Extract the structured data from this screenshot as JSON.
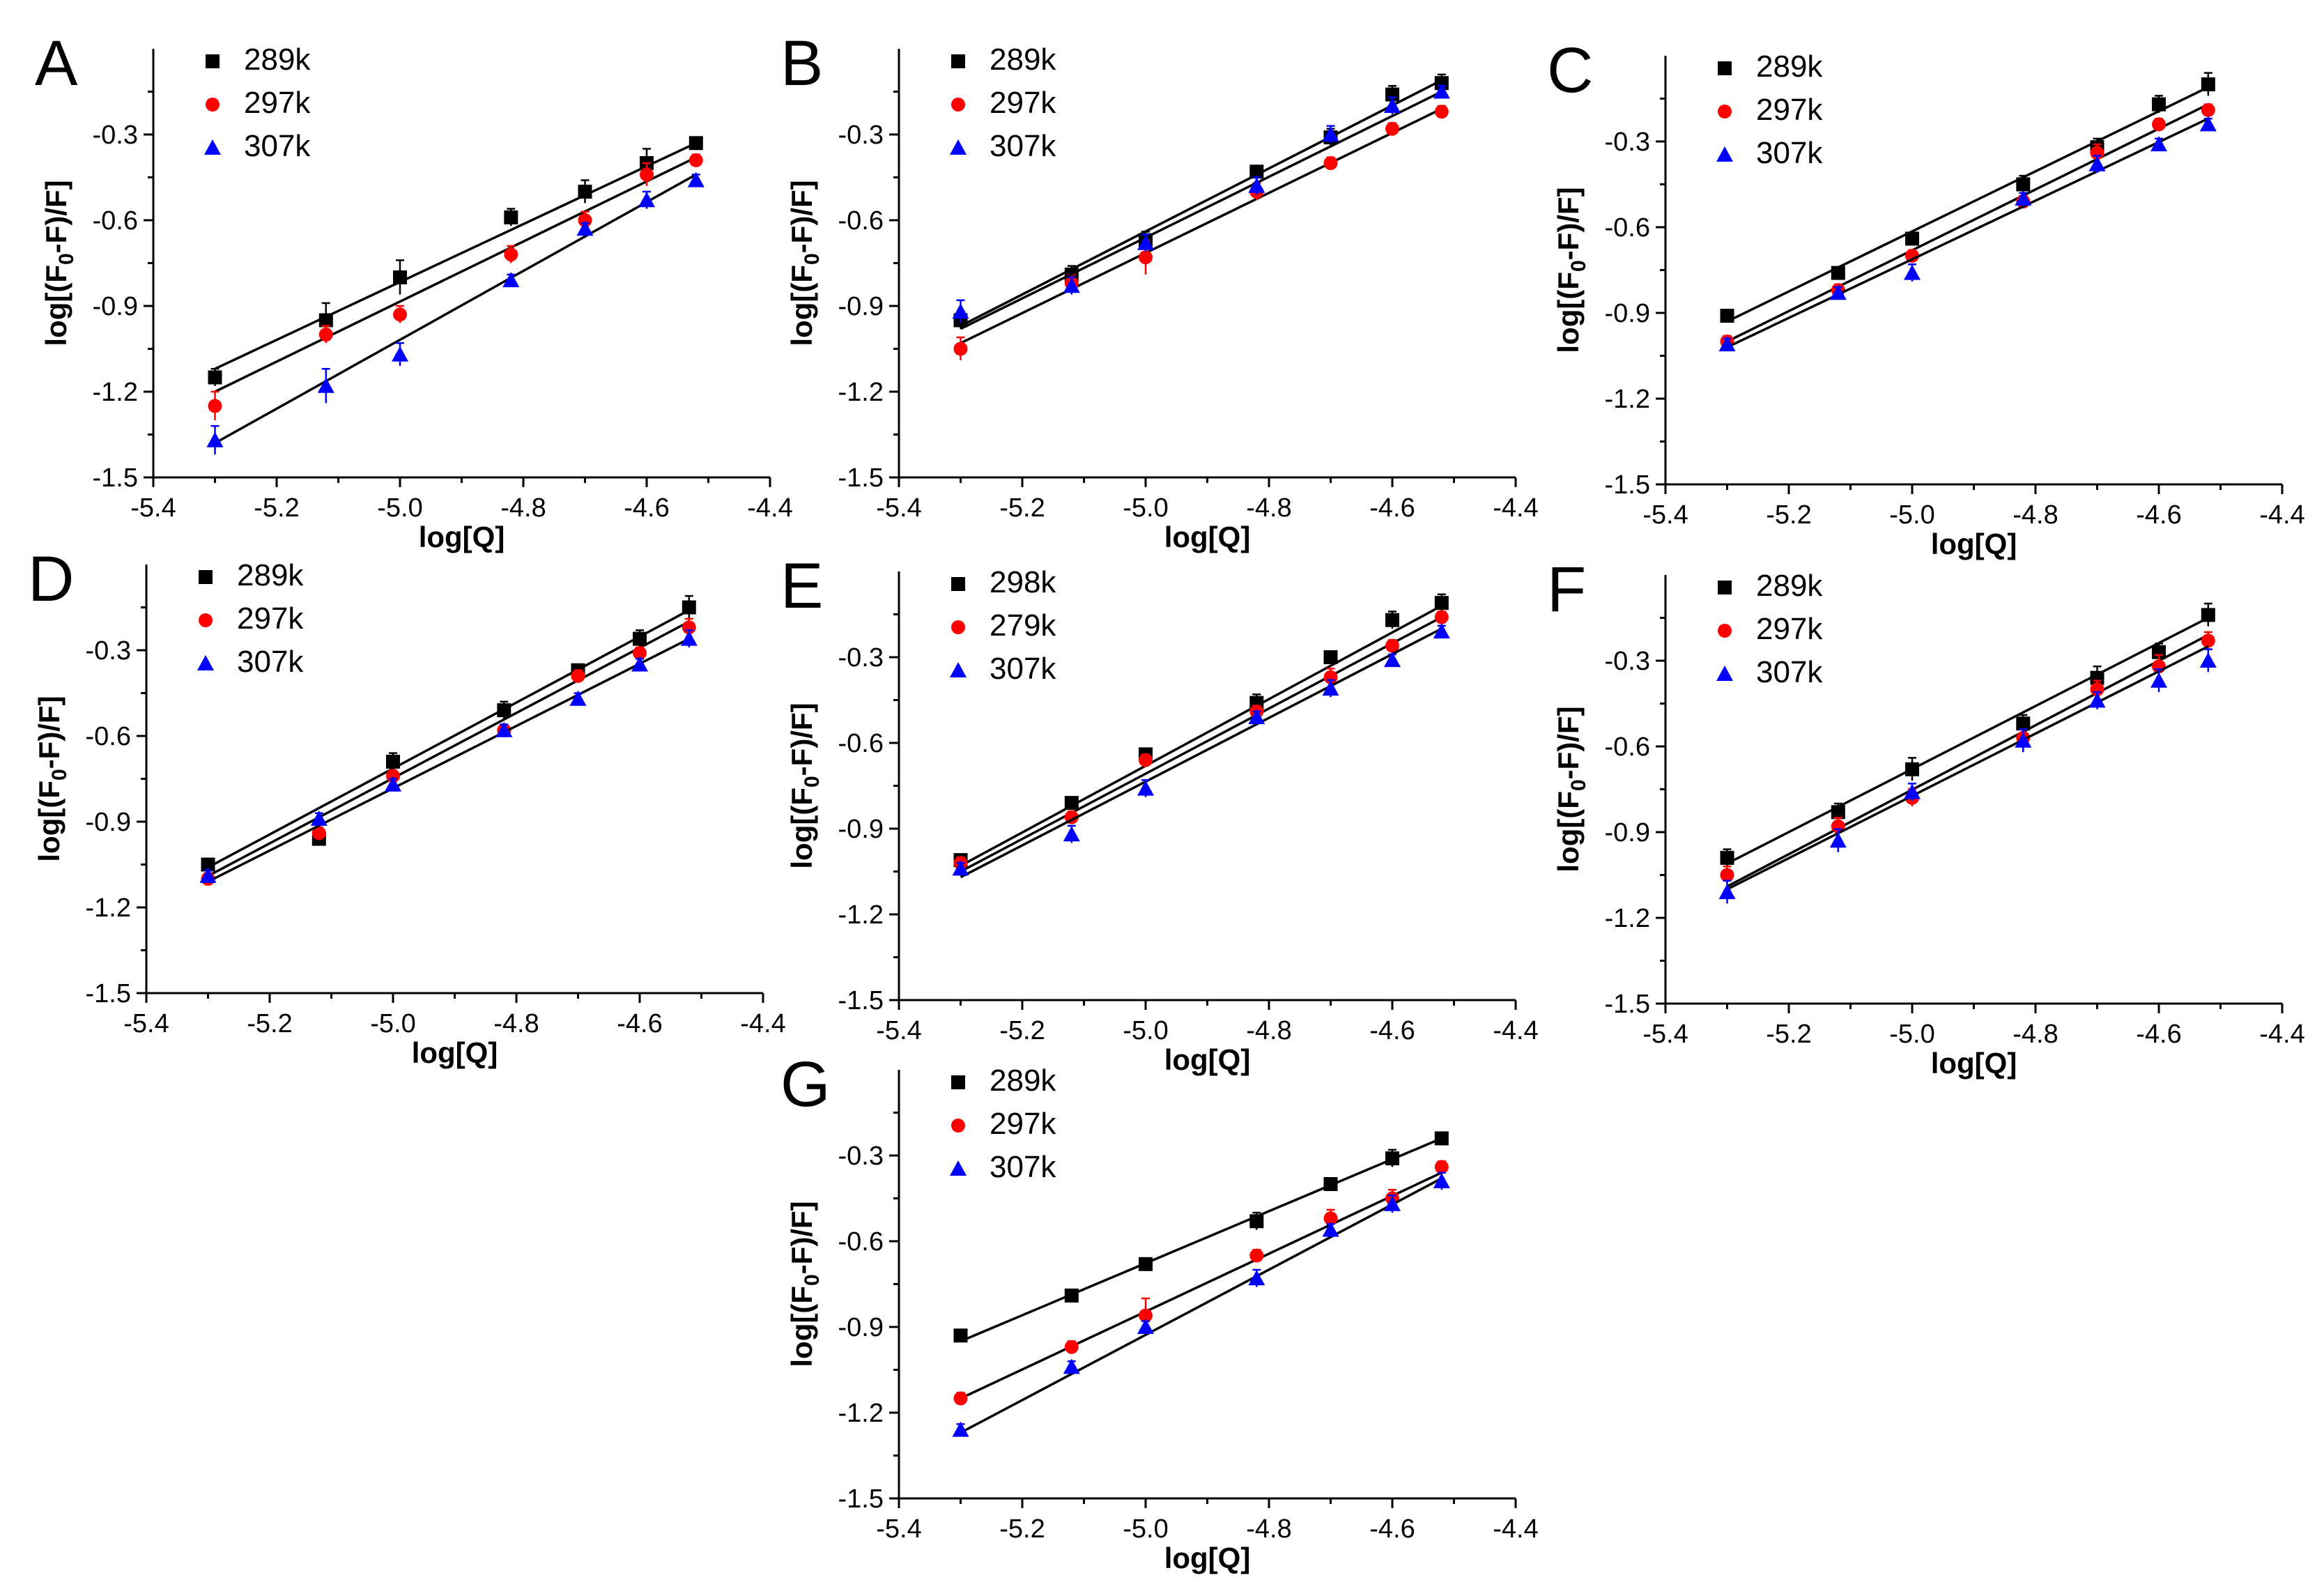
{
  "chart_data": [
    {
      "type": "scatter",
      "panel": "A",
      "xlabel": "log[Q]",
      "ylabel": "log[(F0-F)/F]",
      "ylabel_sub": "0",
      "xlim": [
        -5.4,
        -4.4
      ],
      "ylim": [
        -1.5,
        0
      ],
      "xticks": [
        "-5.4",
        "-5.2",
        "-5.0",
        "-4.8",
        "-4.6",
        "-4.4"
      ],
      "yticks": [
        "-1.5",
        "-1.2",
        "-0.9",
        "-0.6",
        "-0.3"
      ],
      "x": [
        -5.3,
        -5.12,
        -5.0,
        -4.82,
        -4.7,
        -4.6,
        -4.52
      ],
      "series": [
        {
          "name": "289k",
          "marker": "square",
          "color": "#000000",
          "values": [
            -1.15,
            -0.95,
            -0.8,
            -0.59,
            -0.5,
            -0.4,
            -0.33
          ],
          "errors": [
            0.03,
            0.06,
            0.06,
            0.03,
            0.04,
            0.05,
            0.02
          ],
          "fit": [
            -1.12,
            -0.33
          ]
        },
        {
          "name": "297k",
          "marker": "circle",
          "color": "#ff0000",
          "values": [
            -1.25,
            -1.0,
            -0.93,
            -0.72,
            -0.6,
            -0.44,
            -0.39
          ],
          "errors": [
            0.05,
            0.03,
            0.03,
            0.03,
            0.03,
            0.04,
            0.02
          ],
          "fit": [
            -1.2,
            -0.38
          ]
        },
        {
          "name": "307k",
          "marker": "triangle",
          "color": "#0000ff",
          "values": [
            -1.37,
            -1.18,
            -1.07,
            -0.81,
            -0.63,
            -0.53,
            -0.46
          ],
          "errors": [
            0.05,
            0.06,
            0.04,
            0.02,
            0.02,
            0.03,
            0.02
          ],
          "fit": [
            -1.38,
            -0.44
          ]
        }
      ]
    },
    {
      "type": "scatter",
      "panel": "B",
      "xlabel": "log[Q]",
      "ylabel": "log[(F0-F)/F]",
      "ylabel_sub": "0",
      "xlim": [
        -5.4,
        -4.4
      ],
      "ylim": [
        -1.5,
        0
      ],
      "xticks": [
        "-5.4",
        "-5.2",
        "-5.0",
        "-4.8",
        "-4.6",
        "-4.4"
      ],
      "yticks": [
        "-1.5",
        "-1.2",
        "-0.9",
        "-0.6",
        "-0.3"
      ],
      "x": [
        -5.3,
        -5.12,
        -5.0,
        -4.82,
        -4.7,
        -4.6,
        -4.52
      ],
      "series": [
        {
          "name": "289k",
          "marker": "square",
          "color": "#000000",
          "values": [
            -0.95,
            -0.79,
            -0.67,
            -0.43,
            -0.31,
            -0.16,
            -0.12
          ],
          "errors": [
            0.03,
            0.03,
            0.03,
            0.02,
            0.03,
            0.03,
            0.03
          ],
          "fit": [
            -0.97,
            -0.11
          ]
        },
        {
          "name": "297k",
          "marker": "circle",
          "color": "#ff0000",
          "values": [
            -1.05,
            -0.82,
            -0.73,
            -0.5,
            -0.4,
            -0.28,
            -0.22
          ],
          "errors": [
            0.04,
            0.03,
            0.06,
            0.03,
            0.02,
            0.02,
            0.02
          ],
          "fit": [
            -1.03,
            -0.21
          ]
        },
        {
          "name": "307k",
          "marker": "triangle",
          "color": "#0000ff",
          "values": [
            -0.92,
            -0.83,
            -0.68,
            -0.48,
            -0.3,
            -0.2,
            -0.15
          ],
          "errors": [
            0.04,
            0.03,
            0.03,
            0.03,
            0.03,
            0.03,
            0.02
          ],
          "fit": [
            -0.98,
            -0.15
          ]
        }
      ]
    },
    {
      "type": "scatter",
      "panel": "C",
      "xlabel": "log[Q]",
      "ylabel": "log[(F0-F)/F]",
      "ylabel_sub": "0",
      "xlim": [
        -5.4,
        -4.4
      ],
      "ylim": [
        -1.5,
        0
      ],
      "xticks": [
        "-5.4",
        "-5.2",
        "-5.0",
        "-4.8",
        "-4.6",
        "-4.4"
      ],
      "yticks": [
        "-1.5",
        "-1.2",
        "-0.9",
        "-0.6",
        "-0.3"
      ],
      "x": [
        -5.3,
        -5.12,
        -5.0,
        -4.82,
        -4.7,
        -4.6,
        -4.52
      ],
      "series": [
        {
          "name": "289k",
          "marker": "square",
          "color": "#000000",
          "values": [
            -0.91,
            -0.76,
            -0.64,
            -0.45,
            -0.32,
            -0.17,
            -0.1
          ],
          "errors": [
            0.02,
            0.02,
            0.02,
            0.03,
            0.03,
            0.03,
            0.04
          ],
          "fit": [
            -0.93,
            -0.11
          ]
        },
        {
          "name": "297k",
          "marker": "circle",
          "color": "#ff0000",
          "values": [
            -1.0,
            -0.82,
            -0.7,
            -0.51,
            -0.34,
            -0.24,
            -0.19
          ],
          "errors": [
            0.02,
            0.02,
            0.02,
            0.02,
            0.03,
            0.02,
            0.02
          ],
          "fit": [
            -1.0,
            -0.17
          ]
        },
        {
          "name": "307k",
          "marker": "triangle",
          "color": "#0000ff",
          "values": [
            -1.01,
            -0.83,
            -0.76,
            -0.5,
            -0.38,
            -0.31,
            -0.24
          ],
          "errors": [
            0.02,
            0.02,
            0.03,
            0.02,
            0.03,
            0.02,
            0.02
          ],
          "fit": [
            -1.02,
            -0.22
          ]
        }
      ]
    },
    {
      "type": "scatter",
      "panel": "D",
      "xlabel": "log[Q]",
      "ylabel": "log[(F0-F)/F]",
      "ylabel_sub": "0",
      "xlim": [
        -5.4,
        -4.4
      ],
      "ylim": [
        -1.5,
        0
      ],
      "xticks": [
        "-5.4",
        "-5.2",
        "-5.0",
        "-4.8",
        "-4.6",
        "-4.4"
      ],
      "yticks": [
        "-1.5",
        "-1.2",
        "-0.9",
        "-0.6",
        "-0.3"
      ],
      "x": [
        -5.3,
        -5.12,
        -5.0,
        -4.82,
        -4.7,
        -4.6,
        -4.52
      ],
      "series": [
        {
          "name": "289k",
          "marker": "square",
          "color": "#000000",
          "values": [
            -1.05,
            -0.96,
            -0.69,
            -0.51,
            -0.37,
            -0.26,
            -0.15
          ],
          "errors": [
            0.02,
            0.02,
            0.03,
            0.03,
            0.02,
            0.03,
            0.04
          ],
          "fit": [
            -1.06,
            -0.16
          ]
        },
        {
          "name": "297k",
          "marker": "circle",
          "color": "#ff0000",
          "values": [
            -1.1,
            -0.94,
            -0.74,
            -0.58,
            -0.39,
            -0.31,
            -0.22
          ],
          "errors": [
            0.02,
            0.02,
            0.02,
            0.02,
            0.02,
            0.02,
            0.03
          ],
          "fit": [
            -1.09,
            -0.2
          ]
        },
        {
          "name": "307k",
          "marker": "triangle",
          "color": "#0000ff",
          "values": [
            -1.09,
            -0.89,
            -0.77,
            -0.58,
            -0.47,
            -0.35,
            -0.26
          ],
          "errors": [
            0.02,
            0.02,
            0.02,
            0.02,
            0.02,
            0.02,
            0.03
          ],
          "fit": [
            -1.11,
            -0.26
          ]
        }
      ]
    },
    {
      "type": "scatter",
      "panel": "E",
      "xlabel": "log[Q]",
      "ylabel": "log[(F0-F)/F]",
      "ylabel_sub": "0",
      "xlim": [
        -5.4,
        -4.4
      ],
      "ylim": [
        -1.5,
        0
      ],
      "xticks": [
        "-5.4",
        "-5.2",
        "-5.0",
        "-4.8",
        "-4.6",
        "-4.4"
      ],
      "yticks": [
        "-1.5",
        "-1.2",
        "-0.9",
        "-0.6",
        "-0.3"
      ],
      "x": [
        -5.3,
        -5.12,
        -5.0,
        -4.82,
        -4.7,
        -4.6,
        -4.52
      ],
      "series": [
        {
          "name": "298k",
          "marker": "square",
          "color": "#000000",
          "values": [
            -1.01,
            -0.81,
            -0.64,
            -0.46,
            -0.3,
            -0.17,
            -0.11
          ],
          "errors": [
            0.02,
            0.02,
            0.02,
            0.03,
            0.02,
            0.03,
            0.03
          ],
          "fit": [
            -1.03,
            -0.12
          ]
        },
        {
          "name": "279k",
          "marker": "circle",
          "color": "#ff0000",
          "values": [
            -1.02,
            -0.86,
            -0.66,
            -0.49,
            -0.37,
            -0.26,
            -0.16
          ],
          "errors": [
            0.02,
            0.02,
            0.02,
            0.02,
            0.03,
            0.02,
            0.02
          ],
          "fit": [
            -1.05,
            -0.16
          ]
        },
        {
          "name": "307k",
          "marker": "triangle",
          "color": "#0000ff",
          "values": [
            -1.04,
            -0.92,
            -0.76,
            -0.51,
            -0.41,
            -0.31,
            -0.21
          ],
          "errors": [
            0.02,
            0.03,
            0.03,
            0.02,
            0.03,
            0.02,
            0.02
          ],
          "fit": [
            -1.07,
            -0.2
          ]
        }
      ]
    },
    {
      "type": "scatter",
      "panel": "F",
      "xlabel": "log[Q]",
      "ylabel": "log[(F0-F)/F]",
      "ylabel_sub": "0",
      "xlim": [
        -5.4,
        -4.4
      ],
      "ylim": [
        -1.5,
        0
      ],
      "xticks": [
        "-5.4",
        "-5.2",
        "-5.0",
        "-4.8",
        "-4.6",
        "-4.4"
      ],
      "yticks": [
        "-1.5",
        "-1.2",
        "-0.9",
        "-0.6",
        "-0.3"
      ],
      "x": [
        -5.3,
        -5.12,
        -5.0,
        -4.82,
        -4.7,
        -4.6,
        -4.52
      ],
      "series": [
        {
          "name": "289k",
          "marker": "square",
          "color": "#000000",
          "values": [
            -0.99,
            -0.83,
            -0.68,
            -0.52,
            -0.36,
            -0.27,
            -0.14
          ],
          "errors": [
            0.03,
            0.03,
            0.04,
            0.03,
            0.04,
            0.03,
            0.04
          ],
          "fit": [
            -1.01,
            -0.15
          ]
        },
        {
          "name": "297k",
          "marker": "circle",
          "color": "#ff0000",
          "values": [
            -1.05,
            -0.88,
            -0.78,
            -0.57,
            -0.4,
            -0.32,
            -0.23
          ],
          "errors": [
            0.03,
            0.03,
            0.03,
            0.03,
            0.03,
            0.04,
            0.03
          ],
          "fit": [
            -1.09,
            -0.21
          ]
        },
        {
          "name": "307k",
          "marker": "triangle",
          "color": "#0000ff",
          "values": [
            -1.11,
            -0.93,
            -0.76,
            -0.58,
            -0.44,
            -0.37,
            -0.3
          ],
          "errors": [
            0.04,
            0.04,
            0.03,
            0.04,
            0.03,
            0.04,
            0.04
          ],
          "fit": [
            -1.1,
            -0.25
          ]
        }
      ]
    },
    {
      "type": "scatter",
      "panel": "G",
      "xlabel": "log[Q]",
      "ylabel": "log[(F0-F)/F]",
      "ylabel_sub": "0",
      "xlim": [
        -5.4,
        -4.4
      ],
      "ylim": [
        -1.5,
        0
      ],
      "xticks": [
        "-5.4",
        "-5.2",
        "-5.0",
        "-4.8",
        "-4.6",
        "-4.4"
      ],
      "yticks": [
        "-1.5",
        "-1.2",
        "-0.9",
        "-0.6",
        "-0.3"
      ],
      "x": [
        -5.3,
        -5.12,
        -5.0,
        -4.82,
        -4.7,
        -4.6,
        -4.52
      ],
      "series": [
        {
          "name": "289k",
          "marker": "square",
          "color": "#000000",
          "values": [
            -0.93,
            -0.79,
            -0.68,
            -0.53,
            -0.4,
            -0.31,
            -0.24
          ],
          "errors": [
            0.02,
            0.02,
            0.02,
            0.03,
            0.02,
            0.03,
            0.02
          ],
          "fit": [
            -0.95,
            -0.24
          ]
        },
        {
          "name": "297k",
          "marker": "circle",
          "color": "#ff0000",
          "values": [
            -1.15,
            -0.97,
            -0.86,
            -0.65,
            -0.52,
            -0.45,
            -0.34
          ],
          "errors": [
            0.02,
            0.02,
            0.06,
            0.02,
            0.03,
            0.03,
            0.02
          ],
          "fit": [
            -1.15,
            -0.36
          ]
        },
        {
          "name": "307k",
          "marker": "triangle",
          "color": "#0000ff",
          "values": [
            -1.26,
            -1.04,
            -0.9,
            -0.73,
            -0.56,
            -0.47,
            -0.39
          ],
          "errors": [
            0.02,
            0.02,
            0.02,
            0.03,
            0.02,
            0.03,
            0.03
          ],
          "fit": [
            -1.27,
            -0.38
          ]
        }
      ]
    }
  ]
}
